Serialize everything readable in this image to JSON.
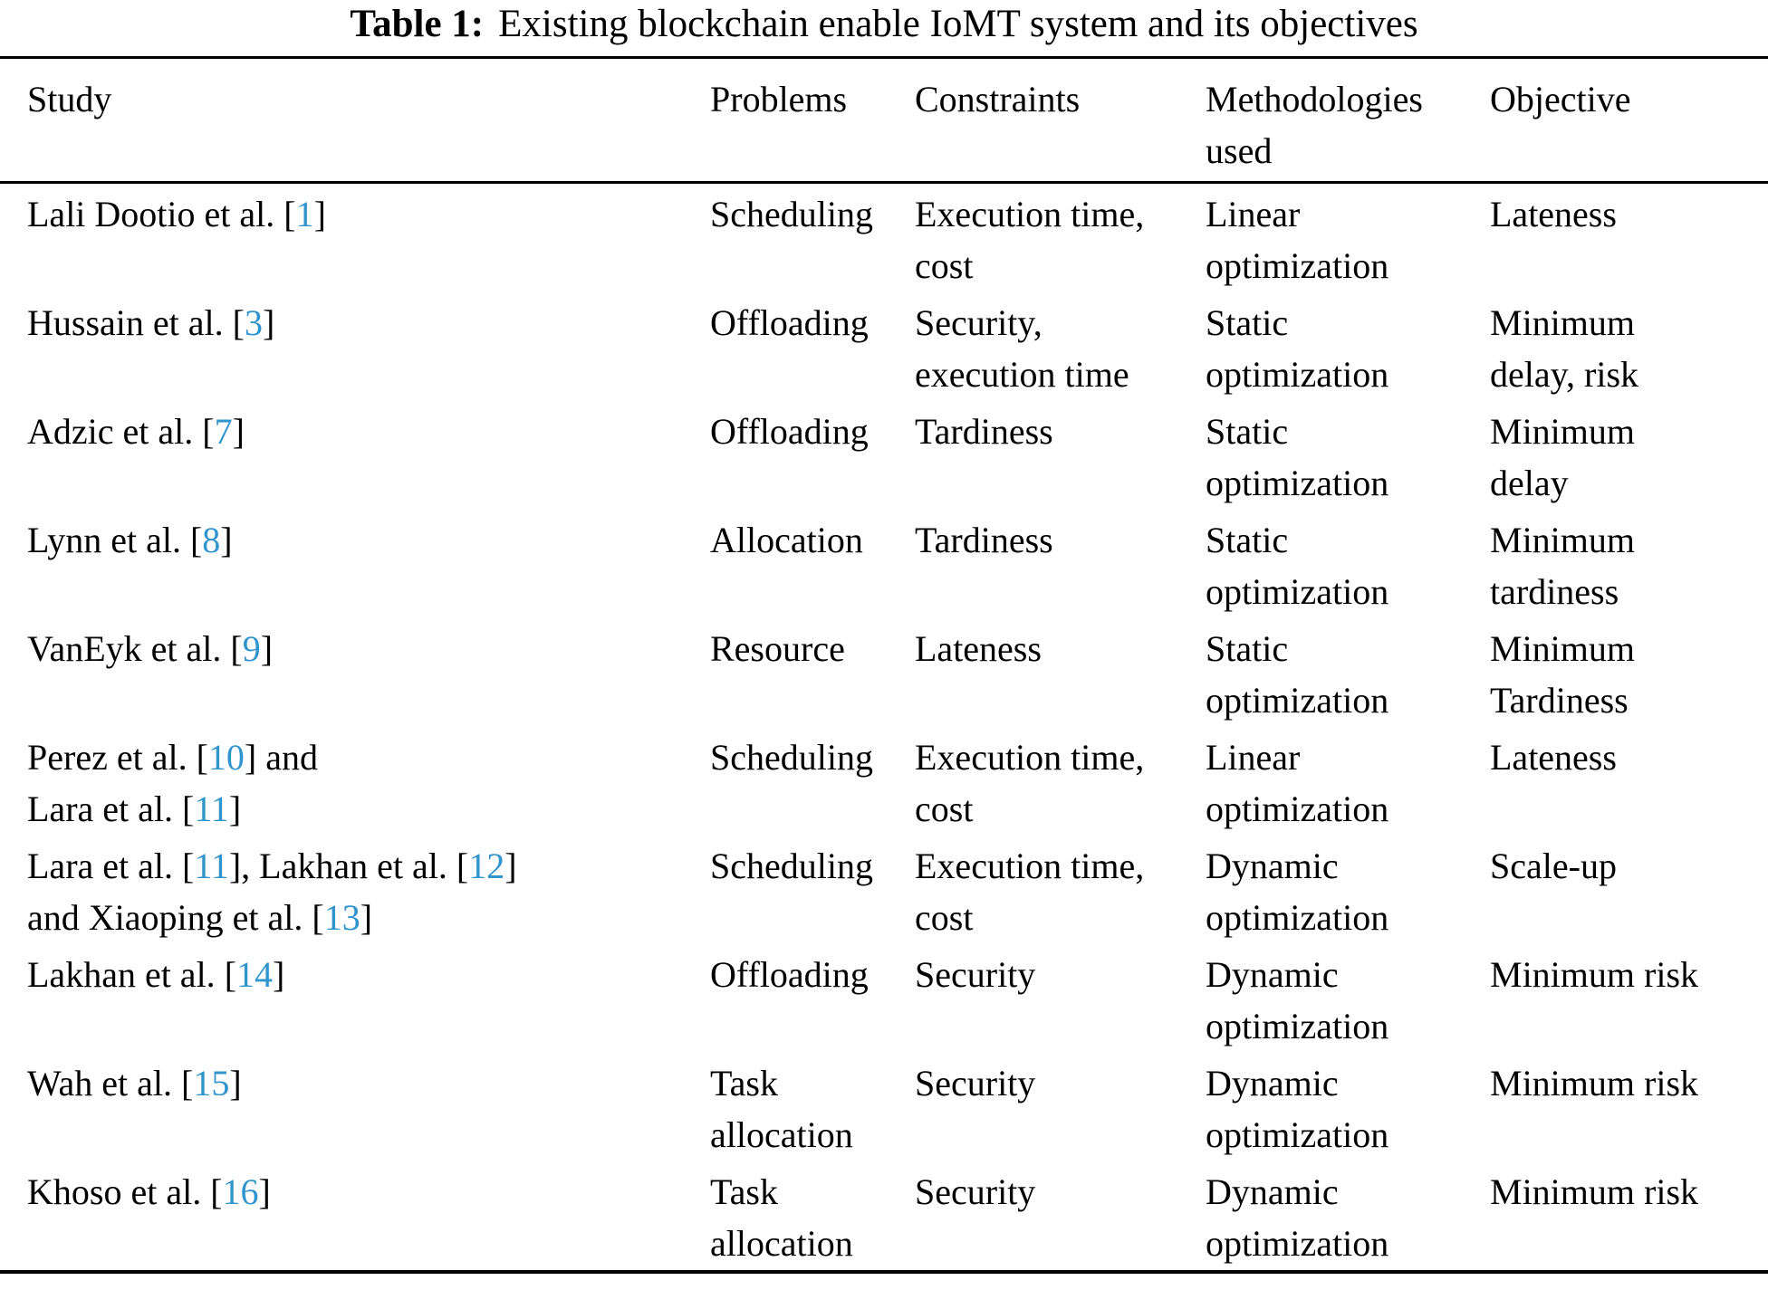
{
  "caption": {
    "label": "Table 1:",
    "text": "Existing blockchain enable IoMT system and its objectives"
  },
  "colors": {
    "citation_link": "#3094cd",
    "text": "#000000",
    "background": "#ffffff"
  },
  "table": {
    "columns": [
      {
        "key": "study",
        "label": "Study"
      },
      {
        "key": "problems",
        "label": "Problems"
      },
      {
        "key": "constraints",
        "label": "Constraints"
      },
      {
        "key": "methodologies",
        "label": "Methodologies\nused"
      },
      {
        "key": "objective",
        "label": "Objective"
      }
    ],
    "rows": [
      {
        "study": "Lali Dootio et al. [1]",
        "problems": "Scheduling",
        "constraints": "Execution time,\ncost",
        "methodologies": "Linear\noptimization",
        "objective": "Lateness"
      },
      {
        "study": "Hussain et al. [3]",
        "problems": "Offloading",
        "constraints": "Security,\nexecution time",
        "methodologies": "Static\noptimization",
        "objective": "Minimum\ndelay, risk"
      },
      {
        "study": "Adzic et al. [7]",
        "problems": "Offloading",
        "constraints": "Tardiness",
        "methodologies": "Static\noptimization",
        "objective": "Minimum\ndelay"
      },
      {
        "study": "Lynn et al. [8]",
        "problems": "Allocation",
        "constraints": "Tardiness",
        "methodologies": "Static\noptimization",
        "objective": "Minimum\ntardiness"
      },
      {
        "study": "VanEyk et al. [9]",
        "problems": "Resource",
        "constraints": "Lateness",
        "methodologies": "Static\noptimization",
        "objective": "Minimum\nTardiness"
      },
      {
        "study": "Perez et al. [10] and\nLara et al. [11]",
        "problems": "Scheduling",
        "constraints": "Execution time,\ncost",
        "methodologies": "Linear\noptimization",
        "objective": "Lateness"
      },
      {
        "study": "Lara et al. [11], Lakhan et al. [12]\nand Xiaoping et al. [13]",
        "problems": "Scheduling",
        "constraints": "Execution time,\ncost",
        "methodologies": "Dynamic\noptimization",
        "objective": "Scale-up"
      },
      {
        "study": "Lakhan et al. [14]",
        "problems": "Offloading",
        "constraints": "Security",
        "methodologies": "Dynamic\noptimization",
        "objective": "Minimum risk"
      },
      {
        "study": "Wah et al. [15]",
        "problems": "Task\nallocation",
        "constraints": "Security",
        "methodologies": "Dynamic\noptimization",
        "objective": "Minimum risk"
      },
      {
        "study": "Khoso et al. [16]",
        "problems": "Task\nallocation",
        "constraints": "Security",
        "methodologies": "Dynamic\noptimization",
        "objective": "Minimum risk"
      }
    ]
  }
}
